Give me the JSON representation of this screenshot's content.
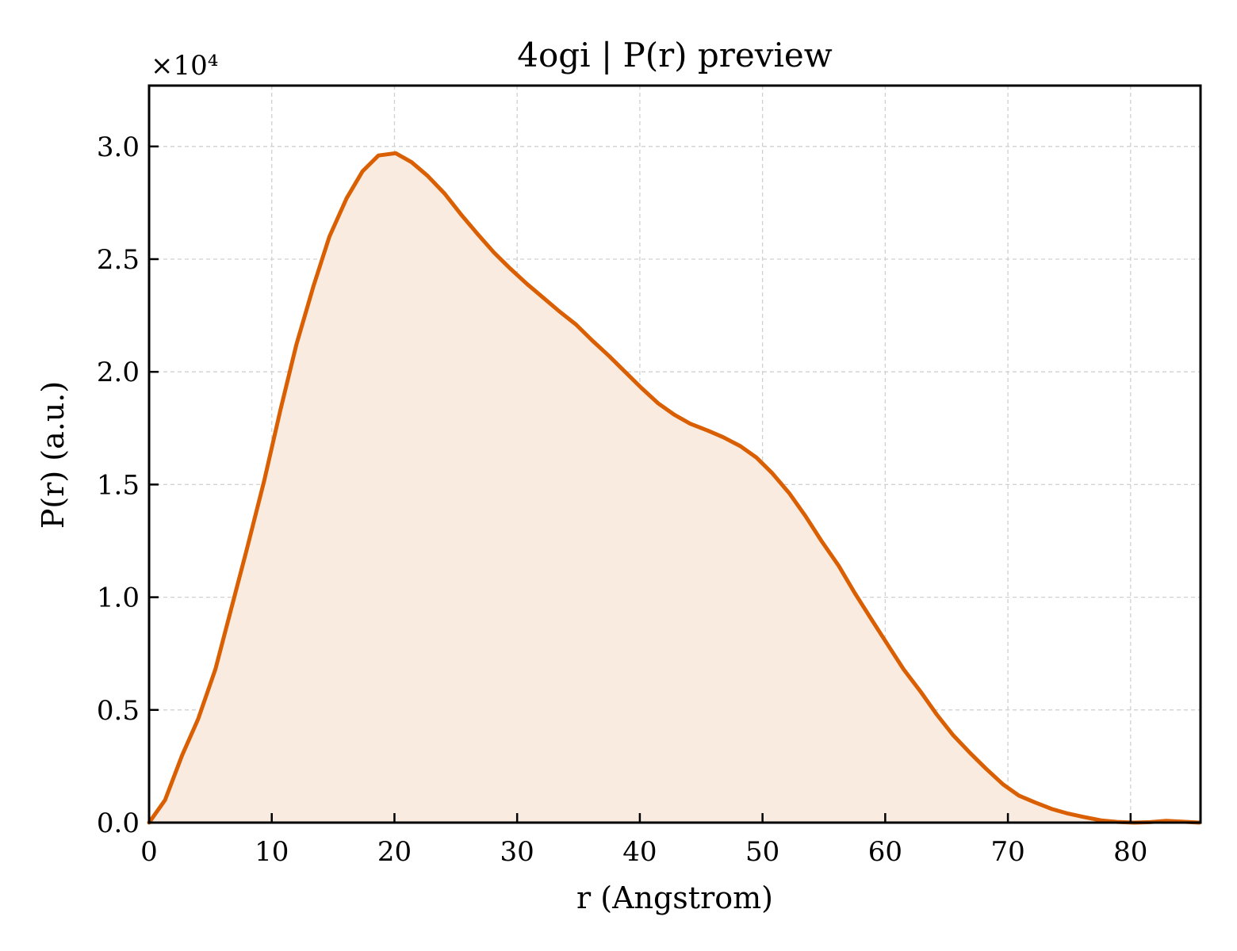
{
  "chart_data": {
    "type": "area",
    "title": "4ogi | P(r) preview",
    "xlabel": "r (Angstrom)",
    "ylabel": "P(r) (a.u.)",
    "y_offset_label": "×10⁴",
    "xlim": [
      0,
      85.7
    ],
    "ylim": [
      0,
      3.27
    ],
    "xticks": [
      0,
      10,
      20,
      30,
      40,
      50,
      60,
      70,
      80
    ],
    "yticks": [
      0.0,
      0.5,
      1.0,
      1.5,
      2.0,
      2.5,
      3.0
    ],
    "xtick_labels": [
      "0",
      "10",
      "20",
      "30",
      "40",
      "50",
      "60",
      "70",
      "80"
    ],
    "ytick_labels": [
      "0.0",
      "0.5",
      "1.0",
      "1.5",
      "2.0",
      "2.5",
      "3.0"
    ],
    "grid": true,
    "line_color": "#d95f02",
    "fill_color": "#f9ebe0",
    "series": [
      {
        "x": [
          0,
          1.3,
          2.7,
          4.0,
          5.4,
          6.7,
          8.0,
          9.4,
          10.7,
          12.0,
          13.4,
          14.7,
          16.1,
          17.4,
          18.7,
          20.1,
          21.4,
          22.7,
          24.1,
          25.4,
          26.8,
          28.1,
          29.4,
          30.8,
          32.1,
          33.4,
          34.8,
          36.1,
          37.5,
          38.8,
          40.1,
          41.5,
          42.8,
          44.1,
          45.5,
          46.8,
          48.2,
          49.5,
          50.8,
          52.2,
          53.5,
          54.8,
          56.2,
          57.5,
          58.9,
          60.2,
          61.5,
          62.9,
          64.2,
          65.5,
          66.9,
          68.2,
          69.6,
          70.9,
          72.2,
          73.6,
          74.9,
          76.2,
          77.6,
          78.9,
          80.3,
          81.6,
          82.9,
          84.3,
          85.6
        ],
        "y": [
          0.0,
          0.1,
          0.3,
          0.46,
          0.68,
          0.95,
          1.22,
          1.52,
          1.83,
          2.12,
          2.38,
          2.6,
          2.77,
          2.89,
          2.96,
          2.97,
          2.93,
          2.87,
          2.79,
          2.7,
          2.61,
          2.53,
          2.46,
          2.39,
          2.33,
          2.27,
          2.21,
          2.14,
          2.07,
          2.0,
          1.93,
          1.86,
          1.81,
          1.77,
          1.74,
          1.71,
          1.67,
          1.62,
          1.55,
          1.46,
          1.36,
          1.25,
          1.14,
          1.02,
          0.9,
          0.79,
          0.68,
          0.58,
          0.48,
          0.39,
          0.31,
          0.24,
          0.17,
          0.12,
          0.09,
          0.06,
          0.04,
          0.025,
          0.01,
          0.003,
          0.0,
          0.002,
          0.008,
          0.004,
          0.0
        ]
      }
    ]
  }
}
